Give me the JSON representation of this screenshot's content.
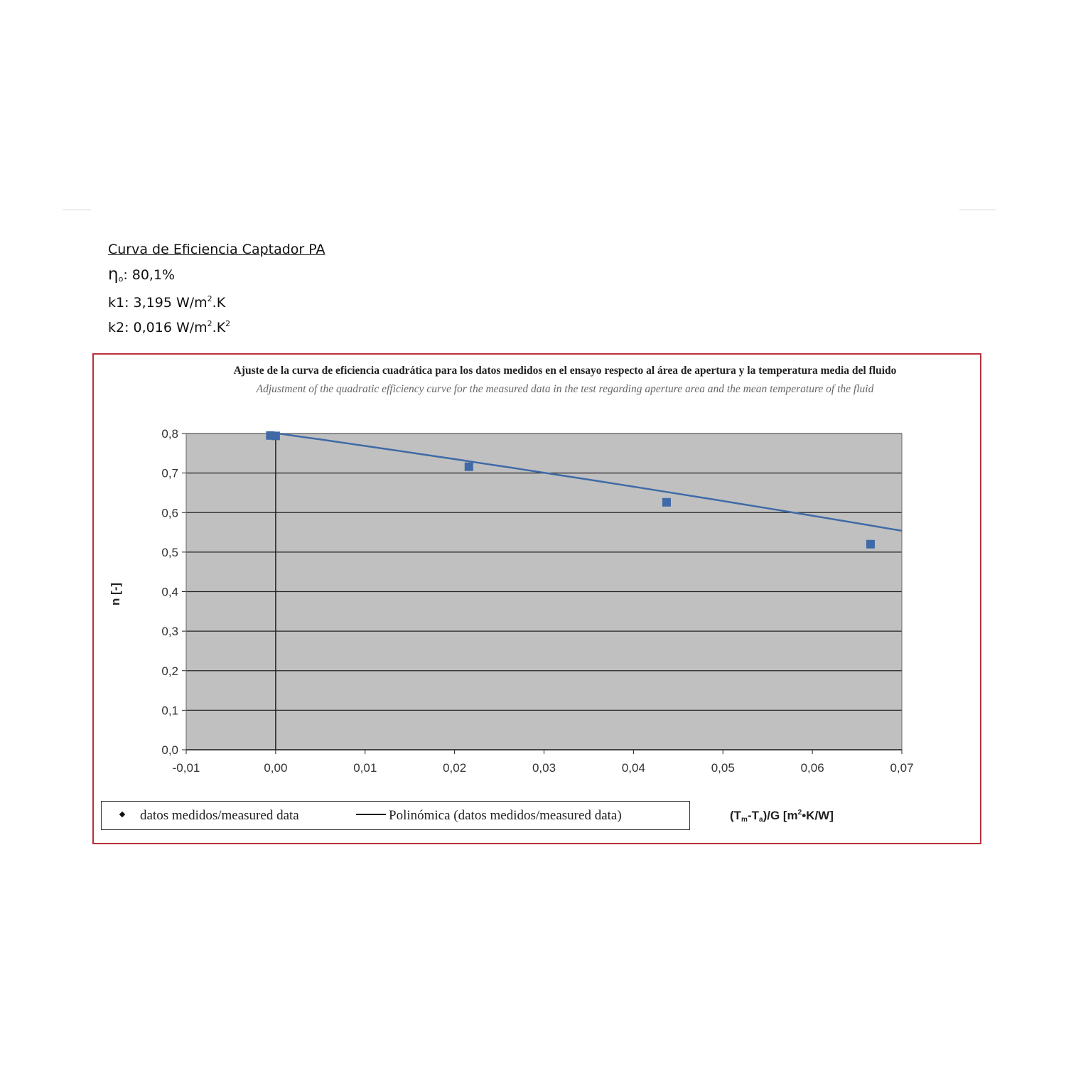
{
  "header": {
    "title": "Curva de Eficiencia Captador PA",
    "eta_symbol": "η",
    "eta_sub": "o",
    "eta_value": ": 80,1%",
    "k1_label": "k1: 3,195 W/m",
    "k1_sup": "2",
    "k1_unit": ".K",
    "k2_label": "k2: 0,016 W/m",
    "k2_sup": "2",
    "k2_unit": ".K",
    "k2_sup2": "2"
  },
  "chart_data": {
    "type": "scatter",
    "title": "Ajuste de la curva de eficiencia cuadrática para los datos medidos en el ensayo respecto al área de apertura y la temperatura media del fluido",
    "subtitle": "Adjustment of the quadratic efficiency curve for the measured data in the test regarding aperture area and the mean temperature of the fluid",
    "ylabel": "n [-]",
    "xlabel_parts": [
      "(T",
      "m",
      "-T",
      "a",
      ")/G [m",
      "2",
      "•K/W]"
    ],
    "xlim": [
      -0.01,
      0.07
    ],
    "ylim": [
      0,
      0.8
    ],
    "x_ticks": [
      "-0,01",
      "0,00",
      "0,01",
      "0,02",
      "0,03",
      "0,04",
      "0,05",
      "0,06",
      "0,07"
    ],
    "y_ticks": [
      "0,0",
      "0,1",
      "0,2",
      "0,3",
      "0,4",
      "0,5",
      "0,6",
      "0,7",
      "0,8"
    ],
    "grid": true,
    "series": [
      {
        "name": "datos medidos/measured data",
        "marker": "square",
        "x": [
          -0.0006,
          0.0,
          0.0216,
          0.0437,
          0.0665
        ],
        "y": [
          0.795,
          0.794,
          0.716,
          0.626,
          0.52
        ]
      },
      {
        "name": "Polinómica (datos medidos/measured data)",
        "type": "line",
        "fit": {
          "eta0": 0.801,
          "k1": 3.195,
          "k2": 0.016,
          "note_units": "x in m2K/W"
        },
        "x_range": [
          0.0,
          0.07
        ]
      }
    ],
    "colors": {
      "plot_bg": "#c0c0c0",
      "series": "#3f6aa7",
      "frame": "#b8303a"
    }
  }
}
